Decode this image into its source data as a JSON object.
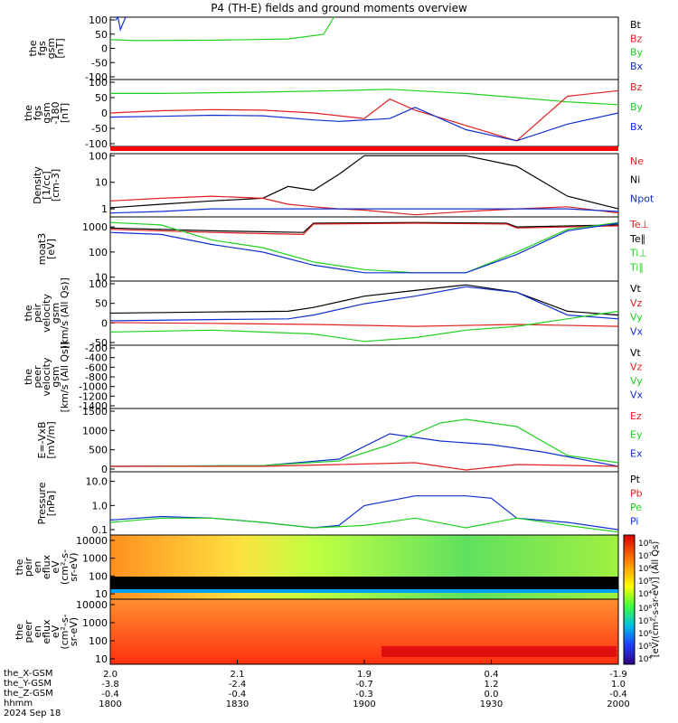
{
  "title": "P4 (TH-E) fields and ground moments overview",
  "colors": {
    "black": "#000000",
    "red": "#e02020",
    "green": "#20d020",
    "blue": "#1030d0",
    "bar": "#ff0000"
  },
  "panels": [
    {
      "id": "fgs",
      "ylabel": [
        "the",
        "fgs",
        "gsm",
        "[nT]"
      ],
      "ticks": [
        "100",
        "50",
        "0",
        "-50",
        "-100"
      ],
      "ymin": -100,
      "ymax": 100,
      "legend": [
        {
          "text": "Bt",
          "color": "black"
        },
        {
          "text": "Bz",
          "color": "red"
        },
        {
          "text": "By",
          "color": "green"
        },
        {
          "text": "Bx",
          "color": "blue"
        }
      ]
    },
    {
      "id": "fgs2",
      "ylabel": [
        "the",
        "fgs",
        "gsm",
        "-180",
        "[nT]"
      ],
      "ticks": [
        "100",
        "50",
        "0",
        "-50",
        "-100"
      ],
      "ymin": -120,
      "ymax": 120,
      "legend": [
        {
          "text": "Bz",
          "color": "red"
        },
        {
          "text": "By",
          "color": "green"
        },
        {
          "text": "Bx",
          "color": "blue"
        }
      ]
    },
    {
      "id": "density",
      "ylabel": [
        "Density",
        "[1/cc]",
        "[cm-3]"
      ],
      "ticks": [
        "100",
        "10",
        "1"
      ],
      "ymin": 0.5,
      "ymax": 120,
      "log": true,
      "legend": [
        {
          "text": "Ne",
          "color": "red"
        },
        {
          "text": "Ni",
          "color": "black"
        },
        {
          "text": "Npot",
          "color": "blue"
        }
      ]
    },
    {
      "id": "temp",
      "ylabel": [
        "moat3",
        "[eV]"
      ],
      "ticks": [
        "1000",
        "100",
        "10"
      ],
      "ymin": 7,
      "ymax": 2500,
      "log": true,
      "legend": [
        {
          "text": "Te⊥",
          "color": "red"
        },
        {
          "text": "Te∥",
          "color": "black"
        },
        {
          "text": "Ti⊥",
          "color": "green"
        },
        {
          "text": "Ti∥",
          "color": "green"
        }
      ]
    },
    {
      "id": "vel",
      "ylabel": [
        "the",
        "peir",
        "velocity",
        "gsm",
        "[km/s (All Qs)]"
      ],
      "ticks": [
        "100",
        "50",
        "0",
        "-50"
      ],
      "ymin": -60,
      "ymax": 110,
      "legend": [
        {
          "text": "Vt",
          "color": "black"
        },
        {
          "text": "Vz",
          "color": "red"
        },
        {
          "text": "Vy",
          "color": "green"
        },
        {
          "text": "Vx",
          "color": "blue"
        }
      ]
    },
    {
      "id": "vel2",
      "ylabel": [
        "the",
        "peer",
        "velocity",
        "gsm",
        "[km/s (All Qs)]"
      ],
      "ticks": [
        "-200",
        "-400",
        "-600",
        "-800",
        "-1000",
        "-1200",
        "-1400"
      ],
      "ymin": -1500,
      "ymax": -100,
      "legend": [
        {
          "text": "Vt",
          "color": "black"
        },
        {
          "text": "Vz",
          "color": "red"
        },
        {
          "text": "Vy",
          "color": "green"
        },
        {
          "text": "Vx",
          "color": "blue"
        }
      ]
    },
    {
      "id": "efield",
      "ylabel": [
        "E=-VxB",
        "[mV/m]"
      ],
      "ticks": [
        "1500",
        "1000",
        "500",
        "0"
      ],
      "ymin": -150,
      "ymax": 1600,
      "legend": [
        {
          "text": "Ez",
          "color": "red"
        },
        {
          "text": "Ey",
          "color": "green"
        },
        {
          "text": "Ex",
          "color": "blue"
        }
      ]
    },
    {
      "id": "pressure",
      "ylabel": [
        "Pressure",
        "[nPa]"
      ],
      "ticks": [
        "10.0",
        "1.0",
        "0.1"
      ],
      "ymin": 0.06,
      "ymax": 25,
      "log": true,
      "legend": [
        {
          "text": "Pt",
          "color": "black"
        },
        {
          "text": "Pb",
          "color": "red"
        },
        {
          "text": "Pe",
          "color": "green"
        },
        {
          "text": "Pi",
          "color": "blue"
        }
      ]
    },
    {
      "id": "spec_i",
      "ylabel": [
        "the",
        "peir",
        "en",
        "eflux",
        "eV",
        "(cm²-s-",
        "sr-eV)"
      ],
      "ticks": [
        "10000",
        "1000",
        "100",
        "10"
      ],
      "ymin": 5,
      "ymax": 20000,
      "log": true,
      "legend": []
    },
    {
      "id": "spec_e",
      "ylabel": [
        "the",
        "peer",
        "en",
        "eflux",
        "eV",
        "(cm²-s-",
        "sr-eV)"
      ],
      "ticks": [
        "10000",
        "1000",
        "100",
        "10"
      ],
      "ymin": 5,
      "ymax": 20000,
      "log": true,
      "legend": []
    }
  ],
  "colorbar": {
    "label": "[eV/(cm²-s-sr-eV)] (All Qs)",
    "ticks_top": [
      "10⁸",
      "10⁷",
      "10⁶",
      "10⁵",
      "10⁴"
    ],
    "ticks_bottom": [
      "10⁸",
      "10⁷",
      "10⁶",
      "10⁵",
      "10⁴"
    ]
  },
  "xaxis": {
    "row_labels": [
      "the_X-GSM",
      "the_Y-GSM",
      "the_Z-GSM",
      "hhmm",
      "2024 Sep 18"
    ],
    "columns": [
      {
        "x": "2.0",
        "y": "-3.8",
        "z": "-0.4",
        "t": "1800"
      },
      {
        "x": "2.1",
        "y": "-2.4",
        "z": "-0.4",
        "t": "1830"
      },
      {
        "x": "1.9",
        "y": "-0.7",
        "z": "-0.3",
        "t": "1900"
      },
      {
        "x": "0.4",
        "y": "1.2",
        "z": "0.0",
        "t": "1930"
      },
      {
        "x": "-1.9",
        "y": "1.0",
        "z": "-0.4",
        "t": "2000"
      }
    ]
  },
  "chart_data": {
    "type": "line",
    "x_range": [
      "18:00",
      "20:00"
    ],
    "series": [
      {
        "panel": "fgs",
        "name": "By",
        "color": "green",
        "x": [
          0,
          0.05,
          0.2,
          0.35,
          0.42,
          0.44
        ],
        "y": [
          28,
          25,
          26,
          30,
          45,
          100
        ]
      },
      {
        "panel": "fgs",
        "name": "Bx",
        "color": "blue",
        "x": [
          0.01,
          0.015,
          0.02,
          0.03
        ],
        "y": [
          90,
          100,
          60,
          100
        ]
      },
      {
        "panel": "fgs2",
        "name": "By",
        "color": "green",
        "x": [
          0,
          0.1,
          0.3,
          0.45,
          0.55,
          0.7,
          0.8,
          0.9,
          1.0
        ],
        "y": [
          70,
          70,
          75,
          80,
          85,
          70,
          55,
          40,
          30
        ]
      },
      {
        "panel": "fgs2",
        "name": "Bz",
        "color": "red",
        "x": [
          0,
          0.1,
          0.2,
          0.3,
          0.4,
          0.5,
          0.55,
          0.6,
          0.8,
          0.9,
          1.0
        ],
        "y": [
          0,
          8,
          12,
          10,
          0,
          -20,
          50,
          10,
          -100,
          60,
          80
        ]
      },
      {
        "panel": "fgs2",
        "name": "Bx",
        "color": "blue",
        "x": [
          0,
          0.1,
          0.2,
          0.3,
          0.4,
          0.45,
          0.55,
          0.6,
          0.7,
          0.8,
          0.9,
          1.0
        ],
        "y": [
          -15,
          -12,
          -8,
          -10,
          -25,
          -30,
          -20,
          20,
          -60,
          -100,
          -40,
          0
        ]
      },
      {
        "panel": "density",
        "name": "Ni",
        "color": "black",
        "x": [
          0,
          0.1,
          0.2,
          0.3,
          0.35,
          0.4,
          0.45,
          0.5,
          0.6,
          0.7,
          0.8,
          0.9,
          1.0
        ],
        "y": [
          1.1,
          1.5,
          2.0,
          2.5,
          7,
          5,
          20,
          100,
          100,
          100,
          40,
          3,
          1
        ]
      },
      {
        "panel": "density",
        "name": "Ne",
        "color": "red",
        "x": [
          0,
          0.1,
          0.2,
          0.3,
          0.35,
          0.4,
          0.45,
          0.5,
          0.6,
          0.7,
          0.8,
          0.9,
          1.0
        ],
        "y": [
          2,
          2.5,
          3,
          2.5,
          1.5,
          1.2,
          1.0,
          0.9,
          0.6,
          0.8,
          1.0,
          1.2,
          0.7
        ]
      },
      {
        "panel": "density",
        "name": "Npot",
        "color": "blue",
        "x": [
          0,
          0.1,
          0.2,
          0.3,
          0.4,
          0.6,
          0.8,
          0.9,
          1.0
        ],
        "y": [
          0.7,
          0.8,
          1.0,
          1.0,
          1.0,
          1.0,
          1.0,
          1.0,
          0.8
        ]
      },
      {
        "panel": "temp",
        "name": "Te∥",
        "color": "black",
        "x": [
          0,
          0.2,
          0.38,
          0.4,
          0.6,
          0.78,
          0.8,
          1.0
        ],
        "y": [
          900,
          700,
          600,
          1400,
          1500,
          1400,
          1000,
          1200
        ]
      },
      {
        "panel": "temp",
        "name": "Te⊥",
        "color": "red",
        "x": [
          0,
          0.2,
          0.38,
          0.4,
          0.6,
          0.78,
          0.8,
          1.0
        ],
        "y": [
          800,
          600,
          500,
          1300,
          1400,
          1300,
          900,
          1100
        ]
      },
      {
        "panel": "temp",
        "name": "Ti⊥",
        "color": "green",
        "x": [
          0,
          0.1,
          0.2,
          0.3,
          0.4,
          0.5,
          0.6,
          0.7,
          0.8,
          0.9,
          1.0
        ],
        "y": [
          1500,
          1200,
          300,
          150,
          40,
          20,
          15,
          15,
          100,
          800,
          1500
        ]
      },
      {
        "panel": "temp",
        "name": "Ti∥",
        "color": "blue",
        "x": [
          0,
          0.1,
          0.2,
          0.3,
          0.4,
          0.5,
          0.6,
          0.7,
          0.8,
          0.9,
          1.0
        ],
        "y": [
          600,
          500,
          200,
          100,
          30,
          15,
          15,
          15,
          80,
          700,
          1400
        ]
      },
      {
        "panel": "vel",
        "name": "Vt",
        "color": "black",
        "x": [
          0,
          0.2,
          0.35,
          0.4,
          0.5,
          0.6,
          0.7,
          0.8,
          0.9,
          1.0
        ],
        "y": [
          25,
          28,
          30,
          40,
          70,
          85,
          100,
          80,
          30,
          20
        ]
      },
      {
        "panel": "vel",
        "name": "Vx",
        "color": "blue",
        "x": [
          0,
          0.2,
          0.35,
          0.4,
          0.5,
          0.6,
          0.7,
          0.8,
          0.9,
          1.0
        ],
        "y": [
          5,
          8,
          10,
          20,
          50,
          70,
          95,
          80,
          20,
          10
        ]
      },
      {
        "panel": "vel",
        "name": "Vz",
        "color": "red",
        "x": [
          0,
          0.2,
          0.4,
          0.6,
          0.8,
          1.0
        ],
        "y": [
          0,
          -2,
          -5,
          -10,
          -5,
          -10
        ]
      },
      {
        "panel": "vel",
        "name": "Vy",
        "color": "green",
        "x": [
          0,
          0.2,
          0.4,
          0.5,
          0.6,
          0.7,
          0.8,
          0.9,
          1.0
        ],
        "y": [
          -25,
          -20,
          -30,
          -50,
          -40,
          -20,
          -10,
          10,
          30
        ]
      },
      {
        "panel": "efield",
        "name": "Ex",
        "color": "blue",
        "x": [
          0,
          0.3,
          0.45,
          0.55,
          0.65,
          0.75,
          0.85,
          1.0
        ],
        "y": [
          0,
          20,
          200,
          900,
          700,
          600,
          400,
          0
        ]
      },
      {
        "panel": "efield",
        "name": "Ey",
        "color": "green",
        "x": [
          0,
          0.3,
          0.45,
          0.55,
          0.65,
          0.7,
          0.8,
          0.9,
          1.0
        ],
        "y": [
          0,
          20,
          150,
          600,
          1200,
          1300,
          1100,
          300,
          100
        ]
      },
      {
        "panel": "efield",
        "name": "Ez",
        "color": "red",
        "x": [
          0,
          0.3,
          0.45,
          0.6,
          0.7,
          0.8,
          1.0
        ],
        "y": [
          0,
          0,
          50,
          100,
          -100,
          50,
          0
        ]
      },
      {
        "panel": "pressure",
        "name": "Pi",
        "color": "blue",
        "x": [
          0,
          0.1,
          0.2,
          0.3,
          0.4,
          0.45,
          0.5,
          0.6,
          0.7,
          0.75,
          0.8,
          0.9,
          1.0
        ],
        "y": [
          0.25,
          0.35,
          0.3,
          0.2,
          0.12,
          0.15,
          1.0,
          2.5,
          2.5,
          2.0,
          0.3,
          0.2,
          0.1
        ]
      },
      {
        "panel": "pressure",
        "name": "Pe",
        "color": "green",
        "x": [
          0,
          0.1,
          0.2,
          0.3,
          0.4,
          0.5,
          0.6,
          0.7,
          0.8,
          0.9,
          1.0
        ],
        "y": [
          0.2,
          0.3,
          0.3,
          0.2,
          0.12,
          0.15,
          0.3,
          0.12,
          0.3,
          0.15,
          0.08
        ]
      }
    ]
  }
}
